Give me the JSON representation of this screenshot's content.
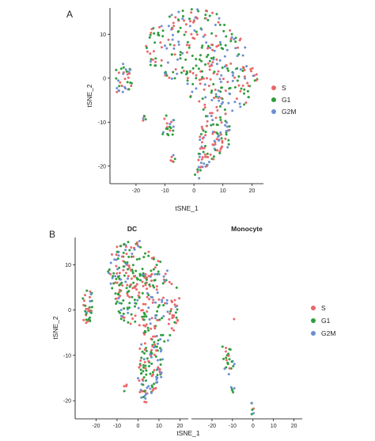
{
  "colors": {
    "S": "#e8686a",
    "G1": "#2e9e3c",
    "G2M": "#6b8fd4"
  },
  "chart_data": [
    {
      "type": "scatter",
      "panel_label": "A",
      "xlabel": "tSNE_1",
      "ylabel": "tSNE_2",
      "xlim": [
        -29,
        24
      ],
      "ylim": [
        -24,
        16
      ],
      "xticks": [
        "-20",
        "-10",
        "0",
        "10",
        "20"
      ],
      "yticks": [
        "10",
        "0",
        "-10",
        "-20"
      ],
      "legend": {
        "position": "right",
        "entries": [
          "S",
          "G1",
          "G2M"
        ]
      },
      "grid": false,
      "clusters": [
        {
          "name": "main",
          "n": 320,
          "poly": [
            [
              -6,
              15
            ],
            [
              0,
              16
            ],
            [
              8,
              15
            ],
            [
              15,
              10
            ],
            [
              21,
              5
            ],
            [
              22,
              0
            ],
            [
              18,
              -6
            ],
            [
              12,
              -8
            ],
            [
              8,
              -8
            ],
            [
              6,
              -6
            ],
            [
              4,
              -9
            ],
            [
              2,
              -6
            ],
            [
              -2,
              -4
            ],
            [
              -5,
              -1
            ],
            [
              -9,
              0
            ],
            [
              -12,
              1
            ],
            [
              -15,
              3
            ],
            [
              -17,
              8
            ],
            [
              -15,
              12
            ],
            [
              -10,
              14
            ]
          ]
        },
        {
          "name": "lower",
          "n": 110,
          "poly": [
            [
              3,
              -7
            ],
            [
              7,
              -8
            ],
            [
              11,
              -8
            ],
            [
              13,
              -12
            ],
            [
              12,
              -16
            ],
            [
              8,
              -18
            ],
            [
              5,
              -20
            ],
            [
              2,
              -24
            ],
            [
              0,
              -22
            ],
            [
              1,
              -18
            ],
            [
              2,
              -13
            ]
          ]
        },
        {
          "name": "left",
          "n": 35,
          "poly": [
            [
              -27,
              -4
            ],
            [
              -23,
              -4
            ],
            [
              -21,
              -1
            ],
            [
              -22,
              3
            ],
            [
              -24,
              4
            ],
            [
              -27,
              2
            ]
          ]
        },
        {
          "name": "small-1",
          "n": 20,
          "poly": [
            [
              -11,
              -8
            ],
            [
              -7,
              -8
            ],
            [
              -6,
              -11
            ],
            [
              -8,
              -14
            ],
            [
              -11,
              -13
            ]
          ]
        },
        {
          "name": "small-2",
          "n": 5,
          "poly": [
            [
              -18,
              -7
            ],
            [
              -16,
              -7
            ],
            [
              -16,
              -10
            ],
            [
              -18,
              -10
            ]
          ]
        },
        {
          "name": "small-3",
          "n": 6,
          "poly": [
            [
              -8,
              -17
            ],
            [
              -6,
              -17
            ],
            [
              -6,
              -19
            ],
            [
              -8,
              -19
            ]
          ]
        }
      ]
    },
    {
      "type": "scatter",
      "panel_label": "B",
      "facets": [
        "DC",
        "Monocyte"
      ],
      "xlabel": "tSNE_1",
      "ylabel": "tSNE_2",
      "xlim": [
        -30,
        24
      ],
      "ylim": [
        -24,
        16
      ],
      "xticks": [
        "-20",
        "-10",
        "0",
        "10",
        "20"
      ],
      "yticks": [
        "10",
        "0",
        "-10",
        "-20"
      ],
      "legend": {
        "position": "right",
        "entries": [
          "S",
          "G1",
          "G2M"
        ]
      },
      "grid": false,
      "clusters": [
        {
          "facet": 0,
          "name": "main",
          "n": 330,
          "poly": [
            [
              -10,
              14
            ],
            [
              -4,
              16
            ],
            [
              3,
              15
            ],
            [
              8,
              12
            ],
            [
              14,
              9
            ],
            [
              18,
              6
            ],
            [
              20,
              2
            ],
            [
              19,
              -3
            ],
            [
              15,
              -7
            ],
            [
              11,
              -9
            ],
            [
              8,
              -9
            ],
            [
              6,
              -7
            ],
            [
              3,
              -6
            ],
            [
              0,
              -4
            ],
            [
              -4,
              -3
            ],
            [
              -8,
              -2
            ],
            [
              -12,
              2
            ],
            [
              -15,
              8
            ],
            [
              -14,
              12
            ]
          ]
        },
        {
          "facet": 0,
          "name": "lower",
          "n": 110,
          "poly": [
            [
              1,
              -6
            ],
            [
              5,
              -7
            ],
            [
              9,
              -7
            ],
            [
              12,
              -10
            ],
            [
              11,
              -15
            ],
            [
              8,
              -18
            ],
            [
              5,
              -20
            ],
            [
              2,
              -21
            ],
            [
              0,
              -17
            ],
            [
              0,
              -12
            ]
          ]
        },
        {
          "facet": 0,
          "name": "left",
          "n": 35,
          "poly": [
            [
              -27,
              -3
            ],
            [
              -23,
              -3
            ],
            [
              -21,
              0
            ],
            [
              -22,
              4
            ],
            [
              -24,
              5
            ],
            [
              -27,
              2
            ]
          ]
        },
        {
          "facet": 0,
          "name": "stray",
          "n": 4,
          "poly": [
            [
              -7,
              -16
            ],
            [
              -5,
              -16
            ],
            [
              -5,
              -18
            ],
            [
              -7,
              -18
            ]
          ]
        },
        {
          "facet": 1,
          "name": "main",
          "n": 24,
          "poly": [
            [
              -15,
              -8
            ],
            [
              -10,
              -8
            ],
            [
              -9,
              -12
            ],
            [
              -11,
              -15
            ],
            [
              -14,
              -14
            ]
          ]
        },
        {
          "facet": 1,
          "name": "small",
          "n": 5,
          "poly": [
            [
              -11,
              -17
            ],
            [
              -9,
              -17
            ],
            [
              -9,
              -19
            ],
            [
              -11,
              -19
            ]
          ]
        },
        {
          "facet": 1,
          "name": "bottom",
          "n": 6,
          "poly": [
            [
              -1,
              -20
            ],
            [
              1,
              -20
            ],
            [
              1,
              -23
            ],
            [
              -1,
              -23
            ]
          ]
        },
        {
          "facet": 1,
          "name": "stray",
          "n": 1,
          "poly": [
            [
              -10,
              -1
            ],
            [
              -9,
              -1
            ],
            [
              -9,
              -2
            ],
            [
              -10,
              -2
            ]
          ]
        }
      ]
    }
  ]
}
